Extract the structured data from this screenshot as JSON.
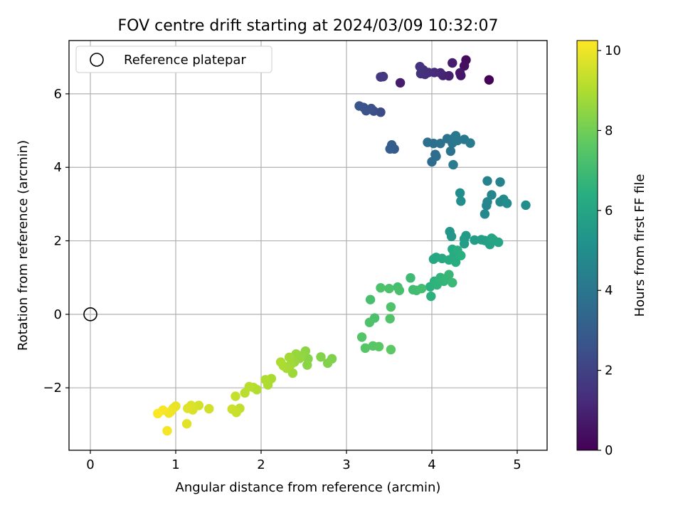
{
  "chart_data": {
    "type": "scatter",
    "title": "FOV centre drift starting at 2024/03/09 10:32:07",
    "xlabel": "Angular distance from reference (arcmin)",
    "ylabel": "Rotation from reference (arcmin)",
    "xlim": [
      -0.25,
      5.35
    ],
    "ylim": [
      -3.7,
      7.45
    ],
    "x_ticks": [
      0,
      1,
      2,
      3,
      4,
      5
    ],
    "y_ticks": [
      -2,
      0,
      2,
      4,
      6
    ],
    "y_tick_labels": [
      "−2",
      "0",
      "2",
      "4",
      "6"
    ],
    "grid": true,
    "legend": {
      "position": "top-left",
      "entries": [
        "Reference platepar"
      ]
    },
    "reference_point": {
      "x": 0,
      "y": 0
    },
    "colorbar": {
      "label": "Hours from first FF file",
      "colormap": "viridis",
      "range": [
        0,
        10.25
      ],
      "ticks": [
        0,
        2,
        4,
        6,
        8,
        10
      ]
    },
    "series": [
      {
        "points": [
          [
            4.67,
            6.38
          ],
          [
            4.4,
            6.92
          ],
          [
            4.38,
            6.76
          ],
          [
            4.34,
            6.5
          ],
          [
            4.33,
            6.57
          ],
          [
            4.24,
            6.84
          ],
          [
            4.2,
            6.49
          ],
          [
            4.13,
            6.5
          ],
          [
            4.1,
            6.57
          ],
          [
            4.03,
            6.58
          ],
          [
            3.96,
            6.58
          ],
          [
            3.92,
            6.53
          ],
          [
            3.9,
            6.65
          ],
          [
            3.87,
            6.55
          ],
          [
            3.86,
            6.74
          ],
          [
            3.63,
            6.3
          ],
          [
            3.43,
            6.47
          ],
          [
            3.4,
            6.46
          ],
          [
            3.4,
            5.5
          ],
          [
            3.32,
            5.53
          ],
          [
            3.29,
            5.6
          ],
          [
            3.23,
            5.54
          ],
          [
            3.2,
            5.63
          ],
          [
            3.15,
            5.67
          ],
          [
            3.56,
            4.5
          ],
          [
            3.53,
            4.61
          ],
          [
            3.51,
            4.5
          ],
          [
            4.0,
            4.15
          ],
          [
            4.04,
            4.35
          ],
          [
            4.05,
            4.3
          ],
          [
            3.95,
            4.68
          ],
          [
            4.02,
            4.65
          ],
          [
            4.1,
            4.65
          ],
          [
            4.18,
            4.78
          ],
          [
            4.22,
            4.44
          ],
          [
            4.24,
            4.66
          ],
          [
            4.26,
            4.8
          ],
          [
            4.28,
            4.86
          ],
          [
            4.3,
            4.73
          ],
          [
            4.38,
            4.76
          ],
          [
            4.45,
            4.66
          ],
          [
            4.25,
            4.07
          ],
          [
            4.65,
            3.63
          ],
          [
            4.8,
            3.6
          ],
          [
            4.7,
            3.25
          ],
          [
            4.65,
            3.06
          ],
          [
            4.64,
            2.96
          ],
          [
            4.62,
            2.73
          ],
          [
            4.8,
            3.06
          ],
          [
            4.84,
            3.13
          ],
          [
            4.88,
            3.02
          ],
          [
            5.1,
            2.97
          ],
          [
            4.33,
            3.3
          ],
          [
            4.34,
            3.08
          ],
          [
            4.21,
            2.25
          ],
          [
            4.23,
            2.12
          ],
          [
            4.4,
            2.14
          ],
          [
            4.38,
            2.05
          ],
          [
            4.38,
            1.92
          ],
          [
            4.5,
            2.02
          ],
          [
            4.58,
            2.03
          ],
          [
            4.62,
            2.01
          ],
          [
            4.66,
            1.97
          ],
          [
            4.68,
            1.9
          ],
          [
            4.7,
            2.07
          ],
          [
            4.72,
            2.03
          ],
          [
            4.78,
            1.96
          ],
          [
            4.02,
            1.5
          ],
          [
            4.05,
            1.55
          ],
          [
            4.12,
            1.52
          ],
          [
            4.2,
            1.48
          ],
          [
            4.24,
            1.77
          ],
          [
            4.26,
            1.62
          ],
          [
            4.28,
            1.42
          ],
          [
            4.3,
            1.74
          ],
          [
            4.34,
            1.6
          ],
          [
            3.98,
            0.75
          ],
          [
            4.03,
            0.9
          ],
          [
            4.06,
            0.8
          ],
          [
            4.1,
            1.0
          ],
          [
            4.14,
            0.9
          ],
          [
            4.16,
            0.97
          ],
          [
            4.2,
            1.08
          ],
          [
            4.24,
            0.86
          ],
          [
            3.75,
            0.99
          ],
          [
            3.78,
            0.67
          ],
          [
            3.82,
            0.65
          ],
          [
            3.88,
            0.7
          ],
          [
            3.6,
            0.74
          ],
          [
            3.62,
            0.65
          ],
          [
            3.5,
            0.7
          ],
          [
            3.4,
            0.72
          ],
          [
            3.99,
            0.49
          ],
          [
            3.28,
            0.4
          ],
          [
            3.33,
            -0.1
          ],
          [
            3.27,
            -0.22
          ],
          [
            3.52,
            0.2
          ],
          [
            3.51,
            -0.12
          ],
          [
            3.18,
            -0.62
          ],
          [
            3.22,
            -0.92
          ],
          [
            3.31,
            -0.86
          ],
          [
            3.38,
            -0.88
          ],
          [
            3.52,
            -0.96
          ],
          [
            2.83,
            -1.21
          ],
          [
            2.78,
            -1.33
          ],
          [
            2.7,
            -1.16
          ],
          [
            2.55,
            -1.21
          ],
          [
            2.54,
            -1.38
          ],
          [
            2.52,
            -1.0
          ],
          [
            2.48,
            -1.12
          ],
          [
            2.45,
            -1.2
          ],
          [
            2.41,
            -1.08
          ],
          [
            2.39,
            -1.3
          ],
          [
            2.37,
            -1.6
          ],
          [
            2.35,
            -1.36
          ],
          [
            2.33,
            -1.17
          ],
          [
            2.3,
            -1.47
          ],
          [
            2.26,
            -1.4
          ],
          [
            2.23,
            -1.3
          ],
          [
            2.12,
            -1.75
          ],
          [
            2.08,
            -1.92
          ],
          [
            2.05,
            -1.78
          ],
          [
            1.95,
            -2.05
          ],
          [
            1.91,
            -1.99
          ],
          [
            1.86,
            -1.97
          ],
          [
            1.81,
            -2.14
          ],
          [
            1.75,
            -2.56
          ],
          [
            1.7,
            -2.23
          ],
          [
            1.71,
            -2.67
          ],
          [
            1.66,
            -2.58
          ],
          [
            1.39,
            -2.57
          ],
          [
            1.27,
            -2.48
          ],
          [
            1.2,
            -2.6
          ],
          [
            1.18,
            -2.48
          ],
          [
            1.14,
            -2.56
          ],
          [
            1.13,
            -2.98
          ],
          [
            1.0,
            -2.5
          ],
          [
            0.97,
            -2.56
          ],
          [
            0.94,
            -2.65
          ],
          [
            0.92,
            -2.69
          ],
          [
            0.9,
            -3.17
          ],
          [
            0.85,
            -2.61
          ],
          [
            0.79,
            -2.7
          ]
        ],
        "hours": [
          0.05,
          0.3,
          0.4,
          0.55,
          0.65,
          0.8,
          0.9,
          1.0,
          1.1,
          1.2,
          1.3,
          1.35,
          1.4,
          1.45,
          1.5,
          0.8,
          1.6,
          1.7,
          2.3,
          2.4,
          2.5,
          2.55,
          2.6,
          2.7,
          2.9,
          3.0,
          3.05,
          3.55,
          3.6,
          3.65,
          3.7,
          3.75,
          3.8,
          3.85,
          3.9,
          3.95,
          4.0,
          4.05,
          4.1,
          4.15,
          4.2,
          4.2,
          4.5,
          4.55,
          4.6,
          4.65,
          4.7,
          4.75,
          4.8,
          4.85,
          4.9,
          4.95,
          5.0,
          5.05,
          5.4,
          5.45,
          5.5,
          5.55,
          5.6,
          5.65,
          5.7,
          5.75,
          5.8,
          5.85,
          5.9,
          5.95,
          6.0,
          6.05,
          6.1,
          6.15,
          6.2,
          6.25,
          6.3,
          6.35,
          6.4,
          6.45,
          6.5,
          6.55,
          6.6,
          6.65,
          6.7,
          6.75,
          6.8,
          6.85,
          6.95,
          7.0,
          7.05,
          7.1,
          7.15,
          7.2,
          7.25,
          7.3,
          6.5,
          7.2,
          7.25,
          7.3,
          7.35,
          7.4,
          7.45,
          7.5,
          7.55,
          7.6,
          7.65,
          8.2,
          8.25,
          8.3,
          8.35,
          8.4,
          8.45,
          8.5,
          8.55,
          8.6,
          8.65,
          8.7,
          8.75,
          8.8,
          8.85,
          8.9,
          8.95,
          8.9,
          8.95,
          9.0,
          9.05,
          9.1,
          9.15,
          9.2,
          9.25,
          9.35,
          9.4,
          9.45,
          9.55,
          9.6,
          9.65,
          9.7,
          9.75,
          9.8,
          9.9,
          9.95,
          10.0,
          10.05,
          10.1,
          10.15,
          10.2
        ]
      }
    ]
  }
}
